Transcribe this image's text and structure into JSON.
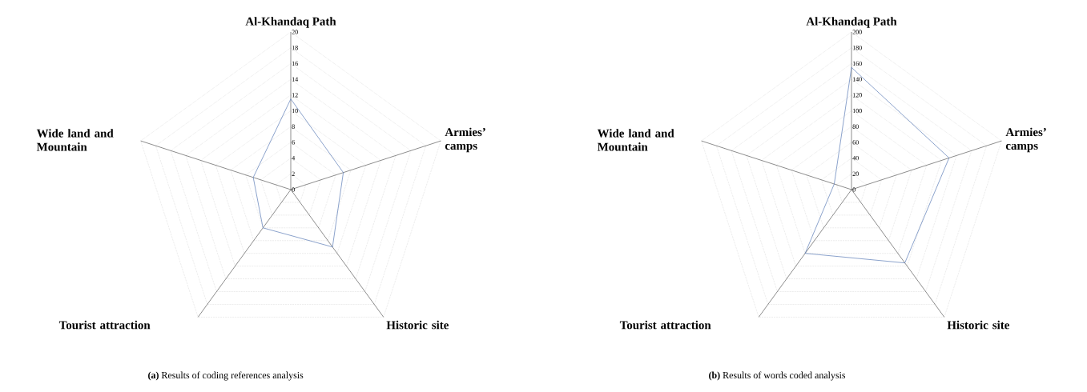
{
  "chart_data": [
    {
      "type": "radar",
      "categories": [
        "Al-Khandaq Path",
        "Armies’ camps",
        "Historic site",
        "Tourist attraction",
        "Wide land and Mountain"
      ],
      "series": [
        {
          "color": "#5a7bb5",
          "values": [
            11.5,
            7,
            9,
            6,
            5
          ]
        }
      ],
      "ylim": [
        0,
        20
      ],
      "yticks": [
        0,
        2,
        4,
        6,
        8,
        10,
        12,
        14,
        16,
        18,
        20
      ],
      "grid": true,
      "annotations": [
        "**(a)** Results of coding references analysis"
      ]
    },
    {
      "type": "radar",
      "categories": [
        "Al-Khandaq Path",
        "Armies’ camps",
        "Historic site",
        "Tourist attraction",
        "Wide land and Mountain"
      ],
      "series": [
        {
          "color": "#5a7bb5",
          "values": [
            155,
            130,
            115,
            100,
            23
          ]
        }
      ],
      "ylim": [
        0,
        200
      ],
      "yticks": [
        0,
        20,
        40,
        60,
        80,
        100,
        120,
        140,
        160,
        180,
        200
      ],
      "grid": true,
      "annotations": [
        "**(b)** Results of words coded analysis"
      ]
    }
  ]
}
